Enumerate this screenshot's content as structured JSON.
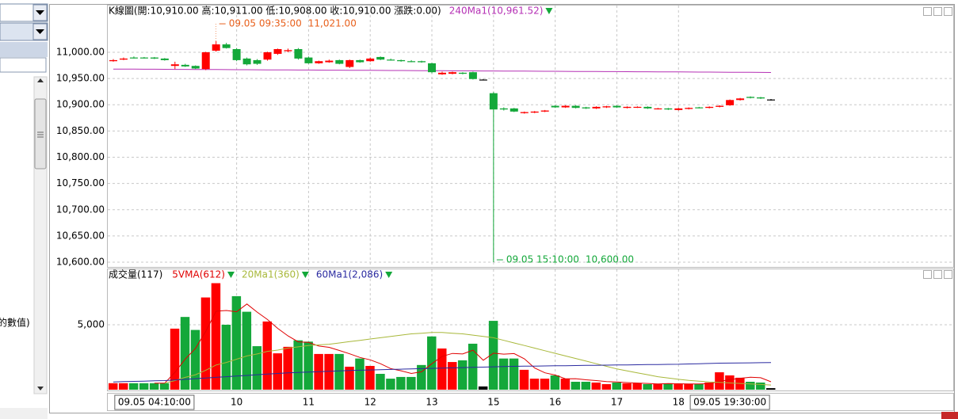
{
  "chart_data": [
    {
      "type": "candlestick",
      "title": "K線圖(開:10,910.00 高:10,911.00 低:10,908.00 收:10,910.00 漲跌:0.00)",
      "open": [
        10983,
        10986,
        10990,
        10990,
        10990,
        10988,
        10974,
        10976,
        10974,
        10968,
        11003,
        11015,
        11006,
        10988,
        10985,
        10986,
        10997,
        11002,
        11006,
        10990,
        10979,
        10981,
        10985,
        10972,
        10985,
        10983,
        10991,
        10986,
        10985,
        10983,
        10983,
        10979,
        10958,
        10959,
        10961,
        10962,
        10948,
        10922,
        10893,
        10893,
        10884,
        10885,
        10887,
        10898,
        10895,
        10898,
        10895,
        10893,
        10895,
        10898,
        10894,
        10895,
        10896,
        10892,
        10893,
        10890,
        10892,
        10895,
        10894,
        10896,
        10899,
        10909,
        10915,
        10914,
        10910
      ],
      "high": [
        10987,
        10990,
        10992,
        10991,
        10991,
        10989,
        10982,
        10978,
        10975,
        11001,
        11021,
        11018,
        11008,
        10990,
        10987,
        11001,
        11007,
        11007,
        11008,
        10992,
        10984,
        10986,
        10986,
        10986,
        10986,
        10990,
        10992,
        10988,
        10986,
        10985,
        10984,
        10980,
        10963,
        10963,
        10962,
        10963,
        10949,
        10924,
        10895,
        10894,
        10887,
        10888,
        10890,
        10899,
        10899,
        10899,
        10896,
        10897,
        10898,
        10899,
        10897,
        10897,
        10897,
        10894,
        10894,
        10894,
        10895,
        10896,
        10897,
        10899,
        10910,
        10913,
        10916,
        10915,
        10911
      ],
      "low": [
        10982,
        10985,
        10988,
        10988,
        10987,
        10984,
        10968,
        10972,
        10968,
        10966,
        11001,
        11007,
        10983,
        10975,
        10976,
        10984,
        10995,
        11000,
        10986,
        10978,
        10978,
        10980,
        10977,
        10970,
        10980,
        10982,
        10985,
        10984,
        10982,
        10981,
        10980,
        10960,
        10957,
        10958,
        10958,
        10948,
        10947,
        10600,
        10889,
        10886,
        10883,
        10884,
        10886,
        10894,
        10894,
        10893,
        10892,
        10892,
        10894,
        10894,
        10893,
        10894,
        10892,
        10891,
        10890,
        10889,
        10891,
        10893,
        10893,
        10895,
        10898,
        10908,
        10912,
        10911,
        10908
      ],
      "close": [
        10985,
        10988,
        10989,
        10989,
        10988,
        10985,
        10977,
        10973,
        10969,
        11000,
        11015,
        11008,
        10985,
        10977,
        10978,
        11000,
        11006,
        11004,
        10988,
        10979,
        10983,
        10984,
        10978,
        10985,
        10981,
        10988,
        10986,
        10985,
        10983,
        10982,
        10981,
        10962,
        10961,
        10962,
        10959,
        10949,
        10948,
        10891,
        10891,
        10887,
        10886,
        10887,
        10889,
        10895,
        10898,
        10894,
        10893,
        10896,
        10897,
        10895,
        10896,
        10896,
        10893,
        10893,
        10891,
        10893,
        10894,
        10894,
        10896,
        10898,
        10909,
        10912,
        10913,
        10912,
        10910
      ],
      "up_color": "#ff0000",
      "down_color": "#14a83a",
      "flat_color": "#000000",
      "series": [
        {
          "name": "240Ma1(10,961.52)",
          "color": "#b531b5",
          "values": [
            10968.0,
            10967.9,
            10967.8,
            10967.7,
            10967.6,
            10967.5,
            10967.4,
            10967.3,
            10967.2,
            10967.1,
            10967.0,
            10966.9,
            10966.8,
            10966.7,
            10966.6,
            10966.5,
            10966.4,
            10966.3,
            10966.2,
            10966.1,
            10966.0,
            10965.9,
            10965.8,
            10965.7,
            10965.6,
            10965.5,
            10965.4,
            10965.3,
            10965.2,
            10965.1,
            10965.0,
            10964.9,
            10964.8,
            10964.7,
            10964.6,
            10964.5,
            10964.4,
            10964.3,
            10964.2,
            10964.1,
            10964.0,
            10963.9,
            10963.8,
            10963.7,
            10963.6,
            10963.5,
            10963.4,
            10963.3,
            10963.2,
            10963.1,
            10963.0,
            10962.9,
            10962.8,
            10962.7,
            10962.6,
            10962.5,
            10962.4,
            10962.3,
            10962.2,
            10962.1,
            10962.0,
            10961.9,
            10961.8,
            10961.7,
            10961.52
          ]
        }
      ],
      "ylim": [
        10591,
        11089
      ],
      "yticks": [
        {
          "value": 10600,
          "label": "10,600.00"
        },
        {
          "value": 10650,
          "label": "10,650.00"
        },
        {
          "value": 10700,
          "label": "10,700.00"
        },
        {
          "value": 10750,
          "label": "10,750.00"
        },
        {
          "value": 10800,
          "label": "10,800.00"
        },
        {
          "value": 10850,
          "label": "10,850.00"
        },
        {
          "value": 10900,
          "label": "10,900.00"
        },
        {
          "value": 10950,
          "label": "10,950.00"
        },
        {
          "value": 11000,
          "label": "11,000.00"
        }
      ],
      "grid": true,
      "annotations": [
        {
          "time": "09.05 09:35:00",
          "value": 11021,
          "label": "11,021.00",
          "color": "#e8601c"
        },
        {
          "time": "09.05 15:10:00",
          "value": 10600,
          "label": "10,600.00",
          "color": "#14a83a"
        }
      ]
    },
    {
      "type": "bar",
      "title": "成交量(117)",
      "categories": [
        null,
        null,
        null,
        null,
        "09.05 04:10:00",
        null,
        null,
        null,
        null,
        null,
        null,
        null,
        "10",
        null,
        null,
        null,
        null,
        null,
        null,
        "11",
        null,
        null,
        null,
        null,
        null,
        "12",
        null,
        null,
        null,
        null,
        null,
        "13",
        null,
        null,
        null,
        null,
        null,
        "15",
        null,
        null,
        null,
        null,
        null,
        "16",
        null,
        null,
        null,
        null,
        null,
        "17",
        null,
        null,
        null,
        null,
        null,
        "18",
        null,
        null,
        null,
        null,
        "09.05 19:30:00",
        null,
        null,
        null,
        null
      ],
      "values": [
        500,
        500,
        500,
        500,
        500,
        500,
        4700,
        5600,
        4600,
        7100,
        8200,
        5000,
        7200,
        6000,
        3350,
        5250,
        2800,
        3300,
        3800,
        3700,
        2750,
        2750,
        2750,
        1770,
        2400,
        1830,
        1220,
        850,
        980,
        980,
        1900,
        4100,
        3170,
        2130,
        2260,
        3540,
        250,
        5300,
        2400,
        2400,
        1530,
        850,
        850,
        1100,
        850,
        610,
        610,
        550,
        430,
        550,
        490,
        490,
        430,
        430,
        490,
        430,
        430,
        430,
        550,
        1340,
        1100,
        920,
        610,
        550,
        117
      ],
      "series": [
        {
          "name": "5VMA(612)",
          "color": "#e00000",
          "values": [
            null,
            null,
            null,
            null,
            500,
            500,
            1340,
            2360,
            3180,
            4500,
            6040,
            6100,
            6000,
            6600,
            5970,
            5400,
            4720,
            4140,
            3680,
            3640,
            3360,
            3260,
            3020,
            2760,
            2480,
            2300,
            2000,
            1620,
            1460,
            1250,
            1380,
            2000,
            2570,
            2790,
            2750,
            3040,
            2270,
            2810,
            2740,
            2780,
            2380,
            1670,
            1300,
            1130,
            840,
            850,
            760,
            700,
            630,
            590,
            550,
            510,
            480,
            440,
            470,
            460,
            440,
            440,
            470,
            640,
            780,
            880,
            960,
            920,
            612
          ]
        },
        {
          "name": "20Ma1(360)",
          "color": "#a8b83a",
          "values": [
            null,
            null,
            null,
            null,
            null,
            500,
            700,
            950,
            1150,
            1500,
            1900,
            2100,
            2350,
            2600,
            2750,
            2950,
            3050,
            3200,
            3300,
            3400,
            3450,
            3500,
            3600,
            3700,
            3800,
            3900,
            4000,
            4100,
            4200,
            4300,
            4350,
            4400,
            4400,
            4350,
            4300,
            4200,
            4100,
            4000,
            3800,
            3600,
            3400,
            3200,
            3000,
            2800,
            2600,
            2400,
            2200,
            2000,
            1800,
            1600,
            1450,
            1300,
            1150,
            1000,
            900,
            800,
            720,
            660,
            600,
            560,
            520,
            480,
            440,
            400,
            360
          ]
        },
        {
          "name": "60Ma1(2,086)",
          "color": "#2a2aa0",
          "values": [
            600,
            620,
            640,
            660,
            680,
            700,
            750,
            800,
            850,
            900,
            950,
            1000,
            1050,
            1100,
            1150,
            1200,
            1250,
            1300,
            1330,
            1360,
            1390,
            1420,
            1450,
            1480,
            1500,
            1520,
            1540,
            1560,
            1580,
            1600,
            1620,
            1640,
            1660,
            1680,
            1700,
            1720,
            1740,
            1760,
            1780,
            1800,
            1810,
            1820,
            1830,
            1840,
            1850,
            1860,
            1870,
            1880,
            1890,
            1900,
            1910,
            1920,
            1930,
            1940,
            1950,
            1960,
            1980,
            2000,
            2020,
            2040,
            2050,
            2060,
            2070,
            2080,
            2086
          ]
        }
      ],
      "ylim": [
        0,
        9268
      ],
      "yticks": [
        {
          "value": 5000,
          "label": "5,000"
        }
      ],
      "grid": true
    }
  ],
  "sidebar": {
    "text": "的數值)"
  }
}
